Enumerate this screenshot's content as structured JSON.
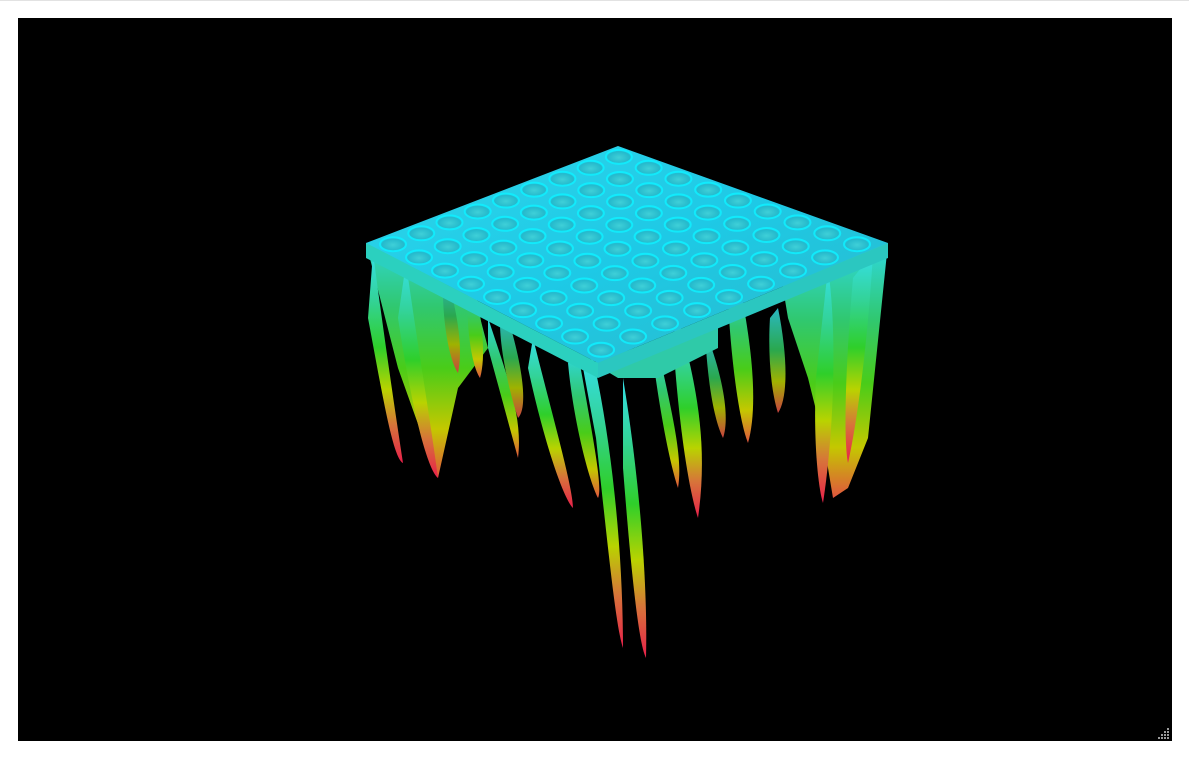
{
  "window": {
    "title": ""
  },
  "viewport": {
    "background": "#000000",
    "surface_type": "3d-surface-plot",
    "colormap": [
      "#00e5ff",
      "#2ee6c8",
      "#3fd63a",
      "#c8d400",
      "#e06a3a",
      "#e8204a"
    ]
  },
  "icons": {
    "resize_grip": "resize-grip-icon"
  }
}
